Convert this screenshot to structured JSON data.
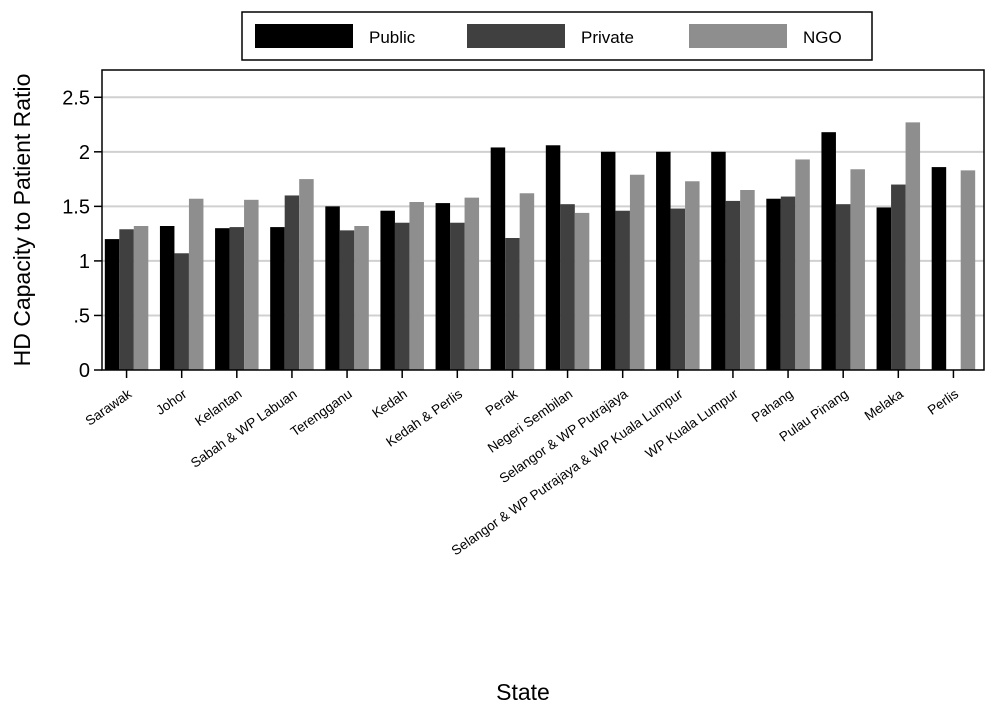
{
  "chart_data": {
    "type": "bar",
    "title": "",
    "xlabel": "State",
    "ylabel": "HD Capacity to Patient Ratio",
    "ylim": [
      0,
      2.75
    ],
    "grid": true,
    "legend_position": "top-center",
    "y_ticks": [
      {
        "value": 0,
        "label": "0"
      },
      {
        "value": 0.5,
        "label": ".5"
      },
      {
        "value": 1,
        "label": "1"
      },
      {
        "value": 1.5,
        "label": "1.5"
      },
      {
        "value": 2,
        "label": "2"
      },
      {
        "value": 2.5,
        "label": "2.5"
      }
    ],
    "categories": [
      "Sarawak",
      "Johor",
      "Kelantan",
      "Sabah & WP Labuan",
      "Terengganu",
      "Kedah",
      "Kedah & Perlis",
      "Perak",
      "Negeri Sembilan",
      "Selangor & WP Putrajaya",
      "Selangor & WP Putrajaya & WP Kuala Lumpur",
      "WP Kuala Lumpur",
      "Pahang",
      "Pulau Pinang",
      "Melaka",
      "Perlis"
    ],
    "series": [
      {
        "name": "Public",
        "color": "#000000",
        "values": [
          1.2,
          1.32,
          1.3,
          1.31,
          1.5,
          1.46,
          1.53,
          2.04,
          2.06,
          2.0,
          2.0,
          2.0,
          1.57,
          2.18,
          1.49,
          1.86
        ]
      },
      {
        "name": "Private",
        "color": "#404040",
        "values": [
          1.29,
          1.07,
          1.31,
          1.6,
          1.28,
          1.35,
          1.35,
          1.21,
          1.52,
          1.46,
          1.48,
          1.55,
          1.59,
          1.52,
          1.7,
          null
        ]
      },
      {
        "name": "NGO",
        "color": "#8e8e8e",
        "values": [
          1.32,
          1.57,
          1.56,
          1.75,
          1.32,
          1.54,
          1.58,
          1.62,
          1.44,
          1.79,
          1.73,
          1.65,
          1.93,
          1.84,
          2.27,
          1.83
        ]
      }
    ]
  }
}
